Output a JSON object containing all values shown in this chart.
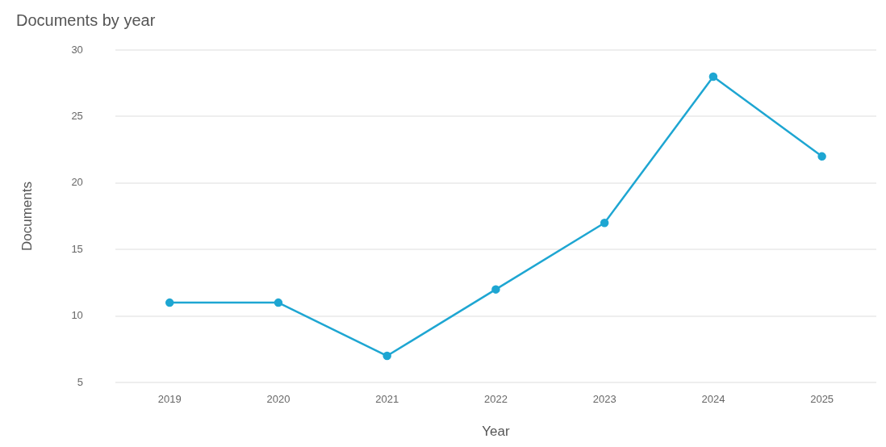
{
  "chart_data": {
    "type": "line",
    "title": "Documents by year",
    "xlabel": "Year",
    "ylabel": "Documents",
    "categories": [
      "2019",
      "2020",
      "2021",
      "2022",
      "2023",
      "2024",
      "2025"
    ],
    "series": [
      {
        "color": "#1ea6d2",
        "values": [
          11,
          11,
          7,
          12,
          17,
          28,
          22
        ]
      }
    ],
    "ylim": [
      5,
      30
    ],
    "yticks": [
      5,
      10,
      15,
      20,
      25,
      30
    ],
    "grid": "y",
    "legend": false,
    "marker": "circle",
    "line_style": "solid"
  }
}
